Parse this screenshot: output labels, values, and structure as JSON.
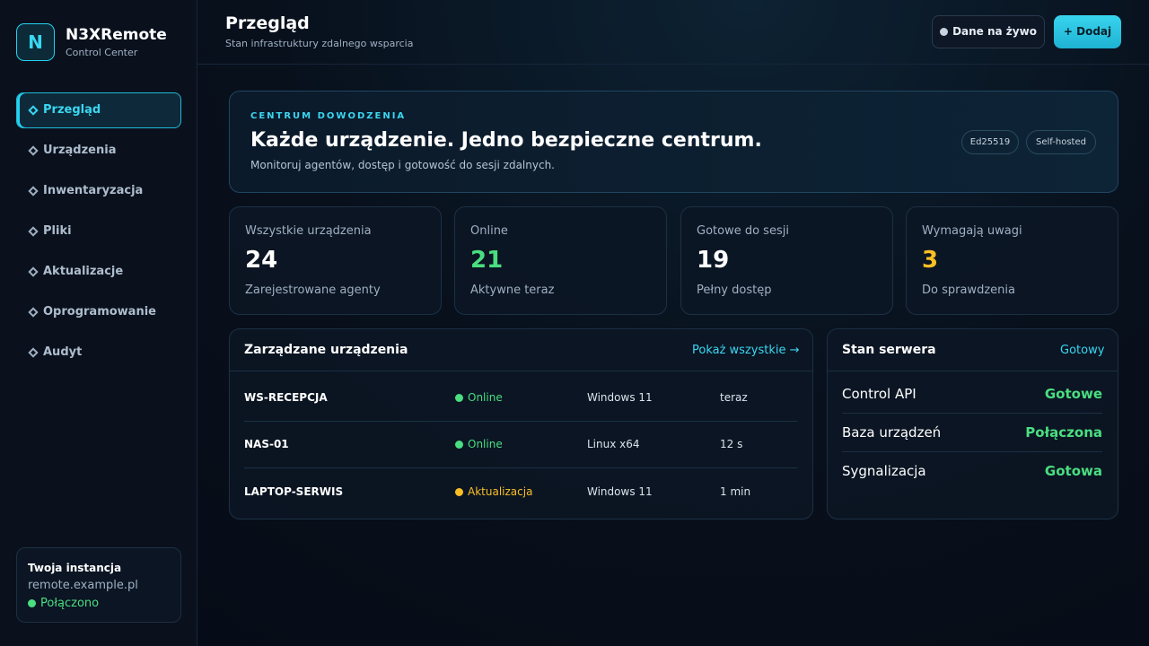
{
  "sidebar": {
    "brand": {
      "logo": "N",
      "name": "N3XRemote",
      "subtitle": "Control Center"
    },
    "nav": [
      "Przegląd",
      "Urządzenia",
      "Inwentaryzacja",
      "Pliki",
      "Aktualizacje",
      "Oprogramowanie",
      "Audyt"
    ],
    "instance": {
      "title": "Twoja instancja",
      "host": "remote.example.pl",
      "status": "Połączono"
    }
  },
  "header": {
    "title": "Przegląd",
    "subtitle": "Stan infrastruktury zdalnego wsparcia",
    "buttons": [
      "Dane na żywo",
      "+ Dodaj"
    ]
  },
  "hero": {
    "eyebrow": "CENTRUM DOWODZENIA",
    "title": "Każde urządzenie. Jedno bezpieczne centrum.",
    "description": "Monitoruj agentów, dostęp i gotowość do sesji zdalnych.",
    "tags": [
      "Ed25519",
      "Self-hosted"
    ]
  },
  "stats": [
    {
      "label": "Wszystkie urządzenia",
      "value": 24,
      "note": "Zarejestrowane agenty"
    },
    {
      "label": "Online",
      "value": 21,
      "note": "Aktywne teraz"
    },
    {
      "label": "Gotowe do sesji",
      "value": 19,
      "note": "Pełny dostęp"
    },
    {
      "label": "Wymagają uwagi",
      "value": 3,
      "note": "Do sprawdzenia"
    }
  ],
  "devices": {
    "title": "Zarządzane urządzenia",
    "link": "Pokaż wszystkie →",
    "rows": [
      {
        "name": "WS-RECEPCJA",
        "status": "Online",
        "os": "Windows 11",
        "seen": "teraz"
      },
      {
        "name": "NAS-01",
        "status": "Online",
        "os": "Linux x64",
        "seen": "12 s"
      },
      {
        "name": "LAPTOP-SERWIS",
        "status": "Aktualizacja",
        "os": "Windows 11",
        "seen": "1 min"
      }
    ]
  },
  "server": {
    "title": "Stan serwera",
    "status": "Gotowy",
    "rows": [
      {
        "label": "Control API",
        "value": "Gotowe"
      },
      {
        "label": "Baza urządzeń",
        "value": "Połączona"
      },
      {
        "label": "Sygnalizacja",
        "value": "Gotowa"
      }
    ]
  }
}
